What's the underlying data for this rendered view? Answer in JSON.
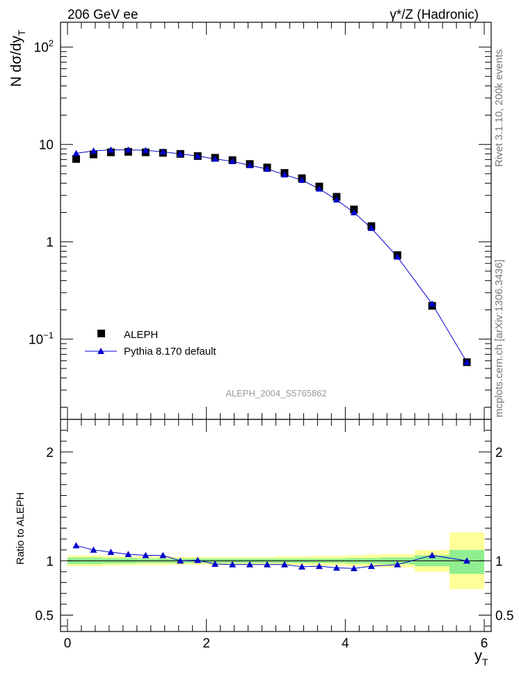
{
  "header": {
    "energy_label": "206 GeV ee",
    "process_label": "γ*/Z (Hadronic)"
  },
  "side_text": {
    "rivet": "Rivet 3.1.10,  200k events",
    "mcplots": "mcplots.cern.ch [arXiv:1306.3436]"
  },
  "analysis_id": "ALEPH_2004_S5765862",
  "legend": {
    "data_label": "ALEPH",
    "mc_label": "Pythia 8.170 default"
  },
  "colors": {
    "mc_line": "#0000cc",
    "data_marker": "#000000",
    "band_outer": "#ffff99",
    "band_inner": "#90ee90"
  },
  "chart_data": [
    {
      "type": "scatter",
      "panel": "main",
      "title": "",
      "xlabel": "y_T",
      "ylabel": "N dσ/dy_T",
      "log_y": true,
      "xlim": [
        -0.1,
        6.1
      ],
      "ylim": [
        0.015,
        180
      ],
      "y_ticks": [
        {
          "value": 0.1,
          "base": "10",
          "exp": "−1"
        },
        {
          "value": 1,
          "label": "1"
        },
        {
          "value": 10,
          "label": "10"
        },
        {
          "value": 100,
          "base": "10",
          "exp": "2"
        }
      ],
      "series": [
        {
          "name": "ALEPH",
          "marker": "square",
          "x": [
            0.125,
            0.375,
            0.625,
            0.875,
            1.125,
            1.375,
            1.625,
            1.875,
            2.125,
            2.375,
            2.625,
            2.875,
            3.125,
            3.375,
            3.625,
            3.875,
            4.125,
            4.375,
            4.75,
            5.25,
            5.75
          ],
          "y": [
            7.1,
            7.9,
            8.3,
            8.4,
            8.3,
            8.2,
            8.0,
            7.6,
            7.3,
            6.9,
            6.3,
            5.8,
            5.1,
            4.5,
            3.7,
            2.9,
            2.15,
            1.45,
            0.73,
            0.22,
            0.058
          ]
        },
        {
          "name": "Pythia 8.170 default",
          "marker": "triangle",
          "x": [
            0.125,
            0.375,
            0.625,
            0.875,
            1.125,
            1.375,
            1.625,
            1.875,
            2.125,
            2.375,
            2.625,
            2.875,
            3.125,
            3.375,
            3.625,
            3.875,
            4.125,
            4.375,
            4.75,
            5.25,
            5.75
          ],
          "y": [
            8.1,
            8.6,
            8.8,
            8.8,
            8.7,
            8.4,
            8.0,
            7.6,
            7.1,
            6.7,
            6.1,
            5.6,
            4.9,
            4.3,
            3.5,
            2.7,
            2.0,
            1.38,
            0.7,
            0.23,
            0.058
          ]
        }
      ]
    },
    {
      "type": "line",
      "panel": "ratio",
      "xlabel": "y_T",
      "ylabel": "Ratio to ALEPH",
      "xlim": [
        -0.1,
        6.1
      ],
      "ylim": [
        0.35,
        2.3
      ],
      "x_ticks": [
        0,
        2,
        4,
        6
      ],
      "y_ticks": [
        0.5,
        1,
        2
      ],
      "bands": {
        "edges": [
          0.0,
          0.25,
          0.5,
          0.75,
          1.0,
          1.25,
          1.5,
          1.75,
          2.0,
          2.25,
          2.5,
          2.75,
          3.0,
          3.25,
          3.5,
          3.75,
          4.0,
          4.25,
          4.5,
          5.0,
          5.5,
          6.0
        ],
        "outer": [
          [
            0.95,
            1.05
          ],
          [
            0.95,
            1.05
          ],
          [
            0.955,
            1.045
          ],
          [
            0.96,
            1.04
          ],
          [
            0.96,
            1.04
          ],
          [
            0.96,
            1.04
          ],
          [
            0.965,
            1.035
          ],
          [
            0.965,
            1.035
          ],
          [
            0.965,
            1.035
          ],
          [
            0.965,
            1.035
          ],
          [
            0.965,
            1.035
          ],
          [
            0.965,
            1.035
          ],
          [
            0.96,
            1.04
          ],
          [
            0.96,
            1.04
          ],
          [
            0.955,
            1.045
          ],
          [
            0.955,
            1.045
          ],
          [
            0.95,
            1.05
          ],
          [
            0.945,
            1.055
          ],
          [
            0.94,
            1.06
          ],
          [
            0.9,
            1.1
          ],
          [
            0.74,
            1.26
          ]
        ],
        "inner": [
          [
            0.97,
            1.03
          ],
          [
            0.97,
            1.03
          ],
          [
            0.975,
            1.025
          ],
          [
            0.975,
            1.025
          ],
          [
            0.98,
            1.02
          ],
          [
            0.98,
            1.02
          ],
          [
            0.98,
            1.02
          ],
          [
            0.98,
            1.02
          ],
          [
            0.98,
            1.02
          ],
          [
            0.98,
            1.02
          ],
          [
            0.98,
            1.02
          ],
          [
            0.98,
            1.02
          ],
          [
            0.98,
            1.02
          ],
          [
            0.98,
            1.02
          ],
          [
            0.98,
            1.02
          ],
          [
            0.98,
            1.02
          ],
          [
            0.975,
            1.025
          ],
          [
            0.975,
            1.025
          ],
          [
            0.97,
            1.03
          ],
          [
            0.95,
            1.05
          ],
          [
            0.88,
            1.1
          ]
        ]
      },
      "series": [
        {
          "name": "Pythia 8.170 default",
          "x": [
            0.125,
            0.375,
            0.625,
            0.875,
            1.125,
            1.375,
            1.625,
            1.875,
            2.125,
            2.375,
            2.625,
            2.875,
            3.125,
            3.375,
            3.625,
            3.875,
            4.125,
            4.375,
            4.75,
            5.25,
            5.75
          ],
          "y": [
            1.14,
            1.1,
            1.08,
            1.06,
            1.05,
            1.05,
            1.0,
            1.005,
            0.97,
            0.965,
            0.965,
            0.965,
            0.965,
            0.945,
            0.95,
            0.935,
            0.93,
            0.95,
            0.965,
            1.05,
            1.0
          ]
        }
      ]
    }
  ]
}
